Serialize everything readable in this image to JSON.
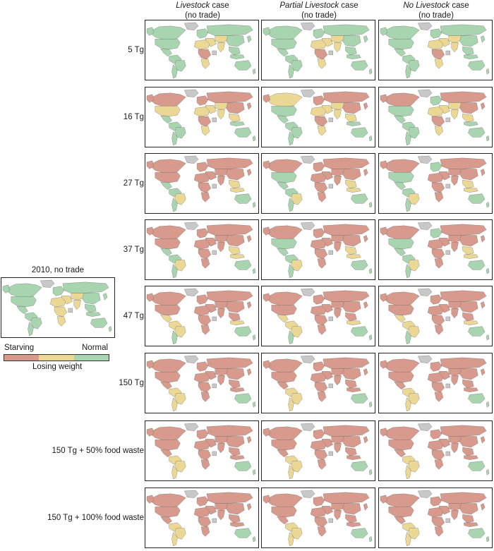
{
  "columns": [
    {
      "italic": "Livestock",
      "rest": " case",
      "sub": "(no trade)"
    },
    {
      "italic": "Partial Livestock",
      "rest": " case",
      "sub": "(no trade)"
    },
    {
      "italic": "No Livestock",
      "rest": " case",
      "sub": "(no trade)"
    }
  ],
  "rows": [
    {
      "label": "5 Tg",
      "severity": 0
    },
    {
      "label": "16 Tg",
      "severity": 1
    },
    {
      "label": "27 Tg",
      "severity": 2
    },
    {
      "label": "37 Tg",
      "severity": 2
    },
    {
      "label": "47 Tg",
      "severity": 3
    },
    {
      "label": "150 Tg",
      "severity": 4
    },
    {
      "label": "150 Tg + 50% food waste",
      "severity": 4
    },
    {
      "label": "150 Tg + 100% food waste",
      "severity": 4
    }
  ],
  "baseline": {
    "title": "2010, no trade"
  },
  "legend": {
    "starving": "Starving",
    "losing_weight": "Losing weight",
    "normal": "Normal"
  },
  "colors": {
    "starving": "#d89a8c",
    "losing_weight": "#ecd895",
    "normal": "#a9d4b0",
    "no_data": "#c8c8c8"
  }
}
